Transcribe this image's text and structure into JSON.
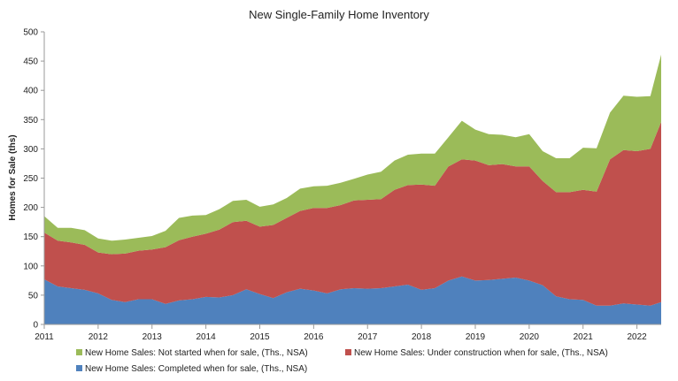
{
  "chart_data": {
    "type": "area",
    "stacked": true,
    "title": "New Single-Family Home Inventory",
    "ylabel": "Homes for Sale (ths)",
    "xlabel": "",
    "xlim": [
      2011,
      2022.45
    ],
    "ylim": [
      0,
      500
    ],
    "yticks": [
      0,
      50,
      100,
      150,
      200,
      250,
      300,
      350,
      400,
      450,
      500
    ],
    "xticks": [
      2011,
      2012,
      2013,
      2014,
      2015,
      2016,
      2017,
      2018,
      2019,
      2020,
      2021,
      2022
    ],
    "x": [
      2011.0,
      2011.25,
      2011.5,
      2011.75,
      2012.0,
      2012.25,
      2012.5,
      2012.75,
      2013.0,
      2013.25,
      2013.5,
      2013.75,
      2014.0,
      2014.25,
      2014.5,
      2014.75,
      2015.0,
      2015.25,
      2015.5,
      2015.75,
      2016.0,
      2016.25,
      2016.5,
      2016.75,
      2017.0,
      2017.25,
      2017.5,
      2017.75,
      2018.0,
      2018.25,
      2018.5,
      2018.75,
      2019.0,
      2019.25,
      2019.5,
      2019.75,
      2020.0,
      2020.25,
      2020.5,
      2020.75,
      2021.0,
      2021.25,
      2021.5,
      2021.75,
      2022.0,
      2022.25,
      2022.45
    ],
    "series": [
      {
        "name": "New Home Sales: Completed when for sale, (Ths., NSA)",
        "color": "#4f81bd",
        "values": [
          77,
          65,
          62,
          59,
          53,
          42,
          38,
          43,
          43,
          35,
          41,
          43,
          47,
          46,
          50,
          60,
          52,
          45,
          55,
          61,
          58,
          53,
          60,
          62,
          61,
          62,
          65,
          68,
          59,
          62,
          75,
          82,
          75,
          76,
          78,
          80,
          75,
          67,
          48,
          43,
          42,
          32,
          32,
          36,
          34,
          32,
          38
        ]
      },
      {
        "name": "New Home Sales: Under construction when for sale, (Ths., NSA)",
        "color": "#c0504d",
        "values": [
          80,
          78,
          78,
          77,
          70,
          78,
          83,
          83,
          85,
          97,
          103,
          107,
          108,
          116,
          125,
          117,
          115,
          125,
          127,
          133,
          141,
          146,
          144,
          150,
          152,
          152,
          165,
          170,
          180,
          175,
          195,
          200,
          205,
          196,
          196,
          190,
          195,
          178,
          178,
          183,
          188,
          195,
          250,
          262,
          262,
          268,
          308
        ]
      },
      {
        "name": "New Home Sales: Not started when for sale, (Ths., NSA)",
        "color": "#9bbb59",
        "values": [
          28,
          22,
          25,
          25,
          24,
          23,
          24,
          22,
          23,
          28,
          38,
          36,
          32,
          35,
          36,
          36,
          34,
          35,
          34,
          38,
          37,
          38,
          38,
          37,
          43,
          47,
          50,
          52,
          53,
          55,
          50,
          66,
          53,
          53,
          50,
          50,
          55,
          51,
          58,
          58,
          72,
          74,
          80,
          93,
          93,
          90,
          115
        ]
      }
    ],
    "legend": {
      "placement": "bottom",
      "entries": [
        {
          "label": "New Home Sales: Not started when for sale, (Ths., NSA)",
          "color": "#9bbb59"
        },
        {
          "label": "New Home Sales: Under construction when for sale, (Ths., NSA)",
          "color": "#c0504d"
        },
        {
          "label": "New Home Sales: Completed when for sale, (Ths., NSA)",
          "color": "#4f81bd"
        }
      ]
    },
    "grid": false
  }
}
